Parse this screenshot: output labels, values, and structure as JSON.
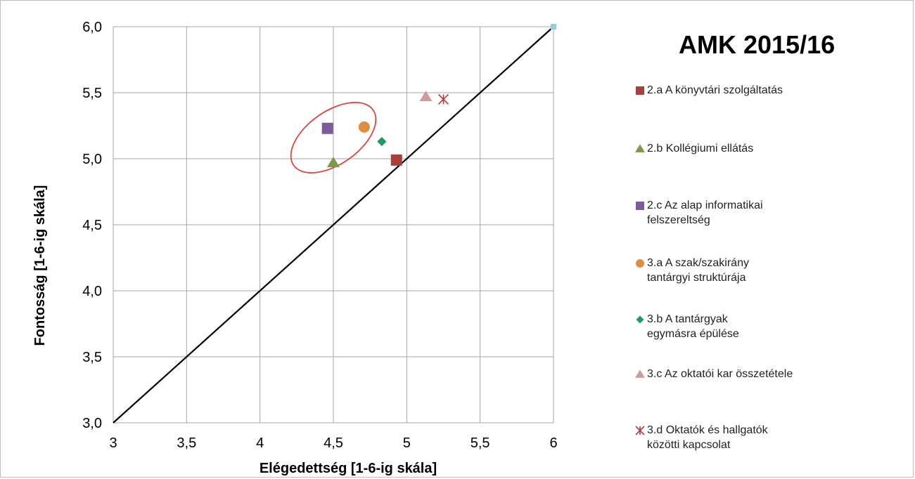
{
  "chart_data": {
    "type": "scatter",
    "title": "AMK 2015/16",
    "xlabel": "Elégedettség [1-6-ig skála]",
    "ylabel": "Fontosság [1-6-ig skála]",
    "xlim": [
      3,
      6
    ],
    "ylim": [
      3,
      6
    ],
    "x_ticks": [
      "3",
      "3,5",
      "4",
      "4,5",
      "5",
      "5,5",
      "6"
    ],
    "y_ticks": [
      "3,0",
      "3,5",
      "4,0",
      "4,5",
      "5,0",
      "5,5",
      "6,0"
    ],
    "grid": true,
    "legend_position": "right",
    "reference_line": {
      "from": [
        3,
        3
      ],
      "to": [
        6,
        6
      ],
      "color": "#000000"
    },
    "reference_point": {
      "x": 6,
      "y": 6,
      "color": "#92cddc"
    },
    "highlight_ellipse": {
      "cx": 4.5,
      "cy": 5.16,
      "rx": 0.33,
      "ry": 0.2,
      "color": "#e0443c"
    },
    "series": [
      {
        "name": "2.a  A könyvtári szolgáltatás",
        "x": 4.93,
        "y": 4.99,
        "marker": "square",
        "color": "#a5403d"
      },
      {
        "name": "2.b  Kollégiumi ellátás",
        "x": 4.5,
        "y": 4.97,
        "marker": "triangle",
        "color": "#7a9a48"
      },
      {
        "name": "2.c  Az alap informatikai\nfelszereltség",
        "x": 4.46,
        "y": 5.23,
        "marker": "square",
        "color": "#7b5c9b"
      },
      {
        "name": "3.a  A  szak/szakirány\ntantárgyi struktúrája",
        "x": 4.71,
        "y": 5.24,
        "marker": "circle",
        "color": "#e18d3f"
      },
      {
        "name": "3.b  A tantárgyak\negymásra épülése",
        "x": 4.83,
        "y": 5.13,
        "marker": "diamond",
        "color": "#1f9c5d"
      },
      {
        "name": "3.c  Az oktatói kar összetétele",
        "x": 5.13,
        "y": 5.47,
        "marker": "triangle",
        "color": "#d39a9c"
      },
      {
        "name": "3.d  Oktatók és hallgatók\nközötti kapcsolat",
        "x": 5.25,
        "y": 5.45,
        "marker": "star",
        "color": "#b03a3a"
      }
    ]
  }
}
